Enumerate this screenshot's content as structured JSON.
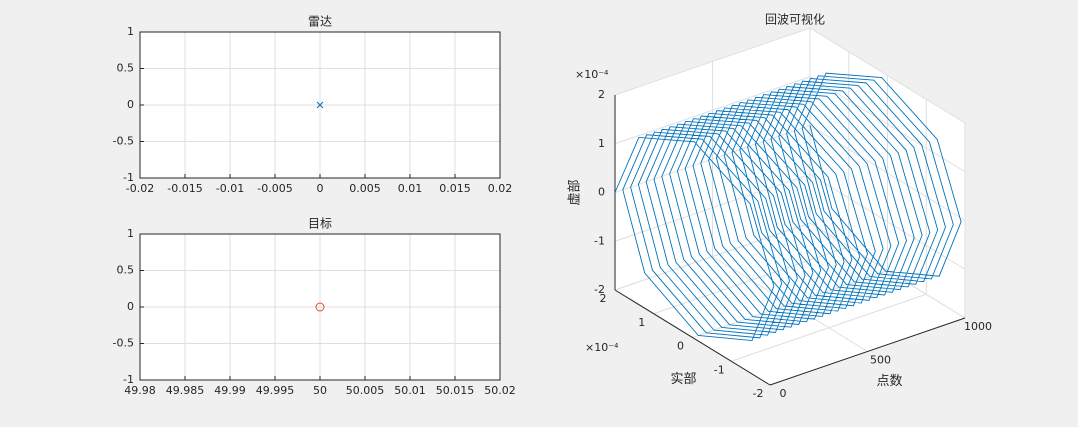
{
  "chart_data": [
    {
      "type": "scatter",
      "title": "雷达",
      "x": [
        0
      ],
      "y": [
        0
      ],
      "marker": "x",
      "color": "#0072bd",
      "xlim": [
        -0.02,
        0.02
      ],
      "ylim": [
        -1,
        1
      ],
      "xticks": [
        -0.02,
        -0.015,
        -0.01,
        -0.005,
        0,
        0.005,
        0.01,
        0.015,
        0.02
      ],
      "yticks": [
        -1,
        -0.5,
        0,
        0.5,
        1
      ],
      "grid": true
    },
    {
      "type": "scatter",
      "title": "目标",
      "x": [
        50
      ],
      "y": [
        0
      ],
      "marker": "o",
      "color": "#d95319",
      "xlim": [
        49.98,
        50.02
      ],
      "ylim": [
        -1,
        1
      ],
      "xticks": [
        49.98,
        49.985,
        49.99,
        49.995,
        50,
        50.005,
        50.01,
        50.015,
        50.02
      ],
      "yticks": [
        -1,
        -0.5,
        0,
        0.5,
        1
      ],
      "grid": true
    },
    {
      "type": "line3d",
      "title": "回波可视化",
      "xlabel": "点数",
      "ylabel": "实部",
      "zlabel": "虚部",
      "y_exponent": "×10⁻⁴",
      "z_exponent": "×10⁻⁴",
      "color": "#0072bd",
      "grid": true,
      "xlim": [
        0,
        1000
      ],
      "ylim": [
        -0.0002,
        0.0002
      ],
      "zlim": [
        -0.0002,
        0.0002
      ],
      "xticks": [
        0,
        500,
        1000
      ],
      "yticks": [
        {
          "value": -0.0002,
          "label": "-2"
        },
        {
          "value": -0.0001,
          "label": "-1"
        },
        {
          "value": 0,
          "label": "0"
        },
        {
          "value": 0.0001,
          "label": "1"
        },
        {
          "value": 0.0002,
          "label": "2"
        }
      ],
      "zticks": [
        {
          "value": -0.0002,
          "label": "-2"
        },
        {
          "value": -0.0001,
          "label": "-1"
        },
        {
          "value": 0,
          "label": "0"
        },
        {
          "value": 0.0001,
          "label": "1"
        },
        {
          "value": 0.0002,
          "label": "2"
        }
      ],
      "x": [
        0,
        5,
        10,
        15,
        20,
        25,
        30,
        35,
        40,
        45,
        50,
        55,
        60,
        65,
        70,
        75,
        80,
        85,
        90,
        95,
        100,
        105,
        110,
        115,
        120,
        125,
        130,
        135,
        140,
        145,
        150,
        155,
        160,
        165,
        170,
        175,
        180,
        185,
        190,
        195,
        200,
        205,
        210,
        215,
        220,
        225,
        230,
        235,
        240,
        245,
        250,
        255,
        260,
        265,
        270,
        275,
        280,
        285,
        290,
        295,
        300,
        305,
        310,
        315,
        320,
        325,
        330,
        335,
        340,
        345,
        350,
        355,
        360,
        365,
        370,
        375,
        380,
        385,
        390,
        395,
        400,
        405,
        410,
        415,
        420,
        425,
        430,
        435,
        440,
        445,
        450,
        455,
        460,
        465,
        470,
        475,
        480,
        485,
        490,
        495,
        500,
        505,
        510,
        515,
        520,
        525,
        530,
        535,
        540,
        545,
        550,
        555,
        560,
        565,
        570,
        575,
        580,
        585,
        590,
        595,
        600,
        605,
        610,
        615,
        620,
        625,
        630,
        635,
        640,
        645,
        650,
        655,
        660,
        665,
        670,
        675,
        680,
        685,
        690,
        695,
        700,
        705,
        710,
        715,
        720,
        725,
        730,
        735,
        740,
        745,
        750,
        755,
        760,
        765,
        770,
        775,
        780,
        785,
        790,
        795,
        800,
        805,
        810,
        815,
        820,
        825,
        830,
        835,
        840,
        845,
        850,
        855,
        860,
        865,
        870,
        875,
        880,
        885,
        890,
        895,
        900,
        905,
        910,
        915,
        920,
        925,
        930,
        935,
        940,
        945,
        950,
        955,
        960,
        965,
        970,
        975,
        980,
        985,
        990,
        995,
        1000
      ],
      "y": [
        0.0002,
        0.000141,
        0,
        -0.000141,
        -0.0002,
        -0.000141,
        0,
        0.000141,
        0.0002,
        0.000141,
        0,
        -0.000141,
        -0.0002,
        -0.000141,
        0,
        0.000141,
        0.0002,
        0.000141,
        0,
        -0.000141,
        -0.0002,
        -0.000141,
        0,
        0.000141,
        0.0002,
        0.000141,
        0,
        -0.000141,
        -0.0002,
        -0.000141,
        0,
        0.000141,
        0.0002,
        0.000141,
        0,
        -0.000141,
        -0.0002,
        -0.000141,
        0,
        0.000141,
        0.0002,
        0.000141,
        0,
        -0.000141,
        -0.0002,
        -0.000141,
        0,
        0.000141,
        0.0002,
        0.000141,
        0,
        -0.000141,
        -0.0002,
        -0.000141,
        0,
        0.000141,
        0.0002,
        0.000141,
        0,
        -0.000141,
        -0.0002,
        -0.000141,
        0,
        0.000141,
        0.0002,
        0.000141,
        0,
        -0.000141,
        -0.0002,
        -0.000141,
        0,
        0.000141,
        0.0002,
        0.000141,
        0,
        -0.000141,
        -0.0002,
        -0.000141,
        0,
        0.000141,
        0.0002,
        0.000141,
        0,
        -0.000141,
        -0.0002,
        -0.000141,
        0,
        0.000141,
        0.0002,
        0.000141,
        0,
        -0.000141,
        -0.0002,
        -0.000141,
        0,
        0.000141,
        0.0002,
        0.000141,
        0,
        -0.000141,
        -0.0002,
        -0.000141,
        0,
        0.000141,
        0.0002,
        0.000141,
        0,
        -0.000141,
        -0.0002,
        -0.000141,
        0,
        0.000141,
        0.0002,
        0.000141,
        0,
        -0.000141,
        -0.0002,
        -0.000141,
        0,
        0.000141,
        0.0002,
        0.000141,
        0,
        -0.000141,
        -0.0002,
        -0.000141,
        0,
        0.000141,
        0.0002,
        0.000141,
        0,
        -0.000141,
        -0.0002,
        -0.000141,
        0,
        0.000141,
        0.0002,
        0.000141,
        0,
        -0.000141,
        -0.0002,
        -0.000141,
        0,
        0.000141,
        0.0002,
        0.000141,
        0,
        -0.000141,
        -0.0002,
        -0.000141,
        0,
        0.000141,
        0.0002,
        0.000141,
        0,
        -0.000141,
        -0.0002,
        -0.000141,
        0,
        0.000141,
        0.0002,
        0.000141,
        0,
        -0.000141,
        -0.0002,
        -0.000141,
        0,
        0.000141,
        0.0002,
        0.000141,
        0,
        -0.000141,
        -0.0002,
        -0.000141,
        0,
        0.000141,
        0.0002,
        0.000141,
        0,
        -0.000141,
        -0.0002,
        -0.000141,
        0,
        0.000141,
        0.0002,
        0.000141,
        0,
        -0.000141,
        -0.0002,
        -0.000141,
        0,
        0.000141,
        0.0002,
        0.000141,
        0,
        -0.000141,
        -0.0002,
        -0.000141,
        0,
        0.000141,
        0.0002
      ],
      "z": [
        0,
        0.000141,
        0.0002,
        0.000141,
        0,
        -0.000141,
        -0.0002,
        -0.000141,
        0,
        0.000141,
        0.0002,
        0.000141,
        0,
        -0.000141,
        -0.0002,
        -0.000141,
        0,
        0.000141,
        0.0002,
        0.000141,
        0,
        -0.000141,
        -0.0002,
        -0.000141,
        0,
        0.000141,
        0.0002,
        0.000141,
        0,
        -0.000141,
        -0.0002,
        -0.000141,
        0,
        0.000141,
        0.0002,
        0.000141,
        0,
        -0.000141,
        -0.0002,
        -0.000141,
        0,
        0.000141,
        0.0002,
        0.000141,
        0,
        -0.000141,
        -0.0002,
        -0.000141,
        0,
        0.000141,
        0.0002,
        0.000141,
        0,
        -0.000141,
        -0.0002,
        -0.000141,
        0,
        0.000141,
        0.0002,
        0.000141,
        0,
        -0.000141,
        -0.0002,
        -0.000141,
        0,
        0.000141,
        0.0002,
        0.000141,
        0,
        -0.000141,
        -0.0002,
        -0.000141,
        0,
        0.000141,
        0.0002,
        0.000141,
        0,
        -0.000141,
        -0.0002,
        -0.000141,
        0,
        0.000141,
        0.0002,
        0.000141,
        0,
        -0.000141,
        -0.0002,
        -0.000141,
        0,
        0.000141,
        0.0002,
        0.000141,
        0,
        -0.000141,
        -0.0002,
        -0.000141,
        0,
        0.000141,
        0.0002,
        0.000141,
        0,
        -0.000141,
        -0.0002,
        -0.000141,
        0,
        0.000141,
        0.0002,
        0.000141,
        0,
        -0.000141,
        -0.0002,
        -0.000141,
        0,
        0.000141,
        0.0002,
        0.000141,
        0,
        -0.000141,
        -0.0002,
        -0.000141,
        0,
        0.000141,
        0.0002,
        0.000141,
        0,
        -0.000141,
        -0.0002,
        -0.000141,
        0,
        0.000141,
        0.0002,
        0.000141,
        0,
        -0.000141,
        -0.0002,
        -0.000141,
        0,
        0.000141,
        0.0002,
        0.000141,
        0,
        -0.000141,
        -0.0002,
        -0.000141,
        0,
        0.000141,
        0.0002,
        0.000141,
        0,
        -0.000141,
        -0.0002,
        -0.000141,
        0,
        0.000141,
        0.0002,
        0.000141,
        0,
        -0.000141,
        -0.0002,
        -0.000141,
        0,
        0.000141,
        0.0002,
        0.000141,
        0,
        -0.000141,
        -0.0002,
        -0.000141,
        0,
        0.000141,
        0.0002,
        0.000141,
        0,
        -0.000141,
        -0.0002,
        -0.000141,
        0,
        0.000141,
        0.0002,
        0.000141,
        0,
        -0.000141,
        -0.0002,
        -0.000141,
        0,
        0.000141,
        0.0002,
        0.000141,
        0,
        -0.000141,
        -0.0002,
        -0.000141,
        0,
        0.000141,
        0.0002,
        0.000141,
        0,
        -0.000141,
        -0.0002,
        -0.000141,
        0
      ]
    }
  ]
}
